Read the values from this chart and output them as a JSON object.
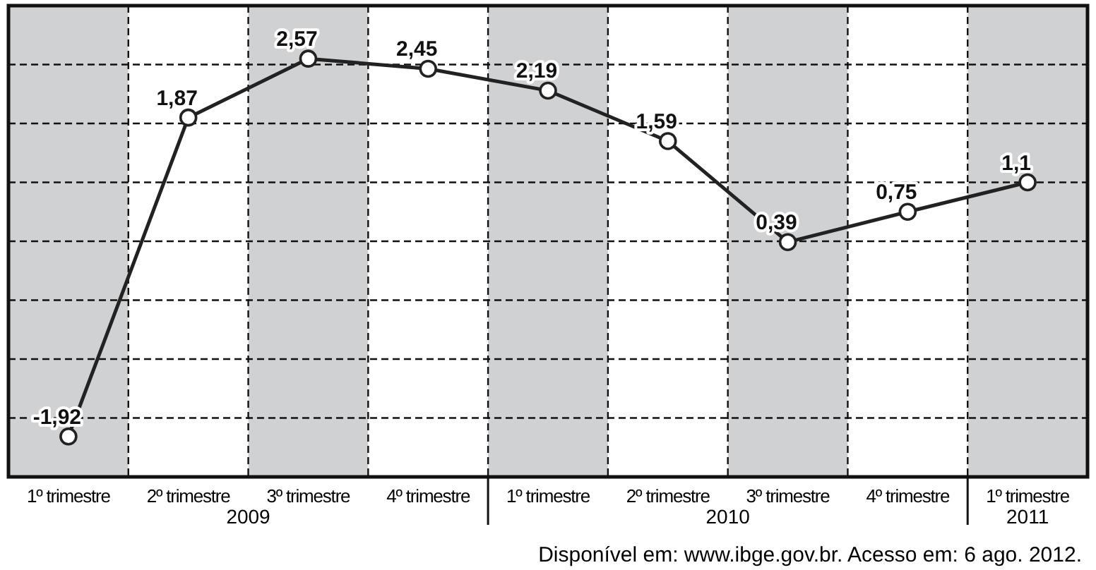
{
  "chart_data": {
    "type": "line",
    "categories": [
      "1º trimestre",
      "2º trimestre",
      "3º trimestre",
      "4º trimestre",
      "1º trimestre",
      "2º trimestre",
      "3º trimestre",
      "4º trimestre",
      "1º trimestre"
    ],
    "series": [
      {
        "color": "#222222",
        "values": [
          -1.92,
          1.87,
          2.57,
          2.45,
          2.19,
          1.59,
          0.39,
          0.75,
          1.1
        ],
        "value_labels": [
          "-1,92",
          "1,87",
          "2,57",
          "2,45",
          "2,19",
          "1,59",
          "0,39",
          "0,75",
          "1,1"
        ]
      }
    ],
    "ylim": [
      -2.4,
      3.2
    ],
    "yticks": [
      {
        "value": -1.7,
        "label": null
      },
      {
        "value": -1,
        "label": null
      },
      {
        "value": -0.3,
        "label": null
      },
      {
        "value": 0.4,
        "label": null
      },
      {
        "value": 1.1,
        "label": null
      },
      {
        "value": 1.8,
        "label": null
      },
      {
        "value": 2.5,
        "label": null
      }
    ],
    "grid": true,
    "marker": "circle",
    "line_style": "solid",
    "tick_labels": "x",
    "annotations": [
      "2009",
      "2010",
      "2011",
      "Disponível em: www.ibge.gov.br. Acesso em: 6 ago. 2012."
    ]
  }
}
